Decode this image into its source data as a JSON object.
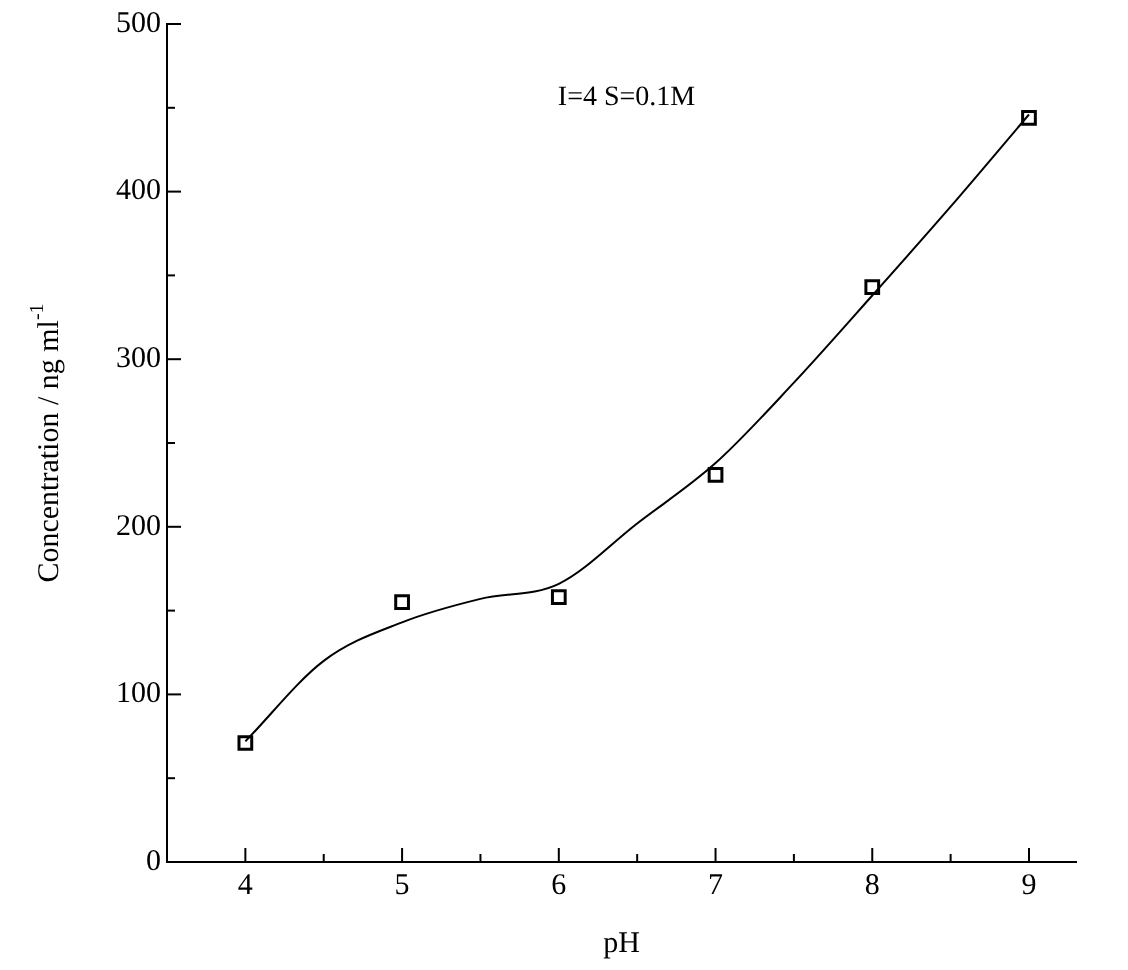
{
  "chart_data": {
    "type": "scatter",
    "xlabel": "pH",
    "ylabel": "Concentration / ng ml$^{-1}$",
    "annotations": [
      "I=4 S=0.1M"
    ],
    "xlim": [
      3.5,
      9.3
    ],
    "xticks": [
      4,
      {
        "value": 4.5,
        "label": null
      },
      5,
      {
        "value": 5.5,
        "label": null
      },
      6,
      {
        "value": 6.5,
        "label": null
      },
      7,
      {
        "value": 7.5,
        "label": null
      },
      8,
      {
        "value": 8.5,
        "label": null
      },
      9
    ],
    "ylim": [
      0,
      500
    ],
    "yticks": [
      0,
      {
        "value": 50,
        "label": null
      },
      100,
      {
        "value": 150,
        "label": null
      },
      200,
      {
        "value": 250,
        "label": null
      },
      300,
      {
        "value": 350,
        "label": null
      },
      400,
      {
        "value": 450,
        "label": null
      },
      500
    ],
    "grid": false,
    "legend": false,
    "series": [
      {
        "type": "scatter",
        "color": "#000000",
        "marker": "square",
        "x": [
          4,
          5,
          6,
          7,
          8,
          9
        ],
        "values": [
          71,
          155,
          158,
          231,
          343,
          444
        ]
      },
      {
        "type": "line",
        "color": "#000000",
        "marker": "none",
        "x": [
          4,
          4.5,
          5,
          5.5,
          6,
          6.5,
          7,
          7.5,
          8,
          8.5,
          9
        ],
        "values": [
          72,
          120,
          143,
          157,
          166,
          202,
          238,
          286,
          338,
          391,
          446
        ]
      }
    ]
  }
}
